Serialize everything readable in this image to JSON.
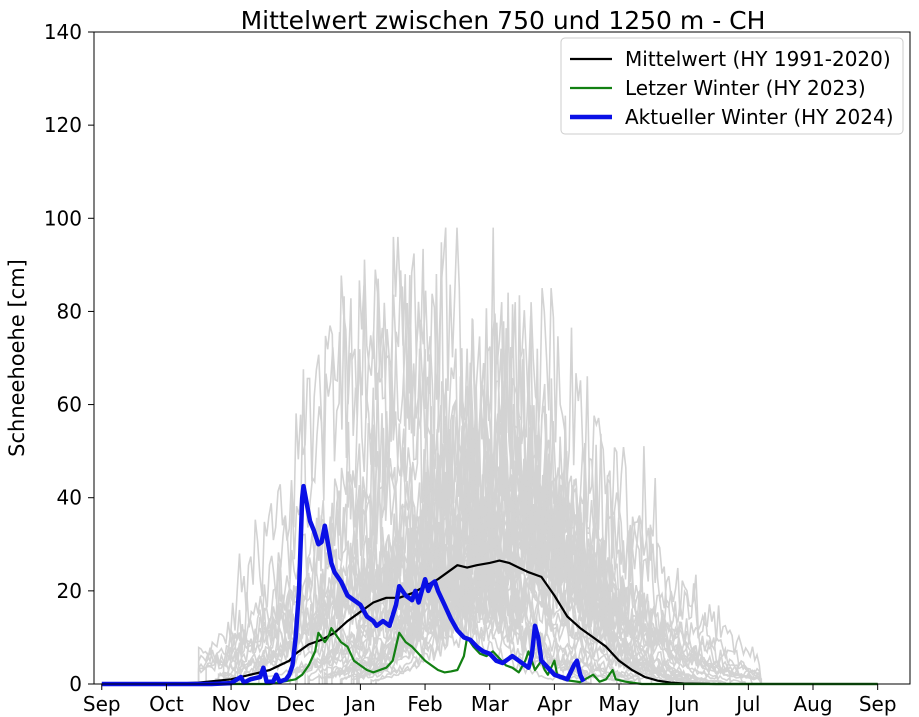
{
  "chart_data": {
    "type": "line",
    "title": "Mittelwert zwischen 750 und 1250 m  - CH",
    "ylabel": "Schneehoehe [cm]",
    "xlabel": "",
    "ylim": [
      0,
      140
    ],
    "xlim": [
      -0.12,
      12.5
    ],
    "yticks": [
      0,
      20,
      40,
      60,
      80,
      100,
      120,
      140
    ],
    "xtick_labels": [
      "Sep",
      "Oct",
      "Nov",
      "Dec",
      "Jan",
      "Feb",
      "Mar",
      "Apr",
      "May",
      "Jun",
      "Jul",
      "Aug",
      "Sep"
    ],
    "grid": false,
    "legend_position": "top-right",
    "legend": [
      {
        "label": "Mittelwert (HY 1991-2020)",
        "color": "#000000"
      },
      {
        "label": "Letzer Winter (HY 2023)",
        "color": "#128012"
      },
      {
        "label": "Aktueller Winter (HY 2024)",
        "color": "#0a10e6"
      }
    ],
    "series": [
      {
        "name": "Mittelwert (HY 1991-2020)",
        "color": "#000000",
        "points": [
          [
            0,
            0
          ],
          [
            1,
            0
          ],
          [
            1.5,
            0.3
          ],
          [
            2,
            1
          ],
          [
            2.3,
            2
          ],
          [
            2.6,
            3
          ],
          [
            2.9,
            5
          ],
          [
            3.0,
            6.5
          ],
          [
            3.2,
            8.5
          ],
          [
            3.4,
            9.5
          ],
          [
            3.6,
            11
          ],
          [
            3.8,
            13.5
          ],
          [
            4.0,
            15.5
          ],
          [
            4.2,
            17.5
          ],
          [
            4.4,
            18.5
          ],
          [
            4.6,
            18.5
          ],
          [
            4.8,
            19.5
          ],
          [
            5.0,
            21
          ],
          [
            5.2,
            22.5
          ],
          [
            5.35,
            24
          ],
          [
            5.5,
            25.5
          ],
          [
            5.65,
            25
          ],
          [
            5.8,
            25.5
          ],
          [
            6.0,
            26
          ],
          [
            6.15,
            26.5
          ],
          [
            6.3,
            26
          ],
          [
            6.45,
            25
          ],
          [
            6.6,
            24
          ],
          [
            6.8,
            23
          ],
          [
            6.9,
            21
          ],
          [
            7.0,
            19
          ],
          [
            7.2,
            14.5
          ],
          [
            7.4,
            12
          ],
          [
            7.6,
            10
          ],
          [
            7.8,
            8
          ],
          [
            8.0,
            5
          ],
          [
            8.2,
            3
          ],
          [
            8.4,
            1.5
          ],
          [
            8.6,
            0.7
          ],
          [
            8.8,
            0.3
          ],
          [
            9.0,
            0.1
          ],
          [
            9.5,
            0
          ],
          [
            12,
            0
          ]
        ]
      },
      {
        "name": "Letzer Winter (HY 2023)",
        "color": "#128012",
        "points": [
          [
            0,
            0
          ],
          [
            2.6,
            0
          ],
          [
            2.8,
            0.5
          ],
          [
            3.0,
            1
          ],
          [
            3.1,
            2
          ],
          [
            3.2,
            4
          ],
          [
            3.3,
            7
          ],
          [
            3.35,
            11
          ],
          [
            3.45,
            9
          ],
          [
            3.5,
            10
          ],
          [
            3.55,
            12
          ],
          [
            3.6,
            11
          ],
          [
            3.7,
            9
          ],
          [
            3.8,
            8
          ],
          [
            3.9,
            5
          ],
          [
            4.0,
            4
          ],
          [
            4.1,
            3
          ],
          [
            4.2,
            2.5
          ],
          [
            4.3,
            3
          ],
          [
            4.4,
            3.5
          ],
          [
            4.5,
            5
          ],
          [
            4.6,
            11
          ],
          [
            4.7,
            9
          ],
          [
            4.8,
            8
          ],
          [
            4.9,
            6.5
          ],
          [
            5.0,
            5
          ],
          [
            5.1,
            4
          ],
          [
            5.2,
            3
          ],
          [
            5.3,
            2.5
          ],
          [
            5.4,
            2.7
          ],
          [
            5.5,
            3
          ],
          [
            5.6,
            6
          ],
          [
            5.65,
            10
          ],
          [
            5.75,
            8
          ],
          [
            5.85,
            6.5
          ],
          [
            5.95,
            6
          ],
          [
            6.05,
            7
          ],
          [
            6.15,
            5.5
          ],
          [
            6.25,
            4
          ],
          [
            6.35,
            3.5
          ],
          [
            6.45,
            2.5
          ],
          [
            6.55,
            5
          ],
          [
            6.6,
            7
          ],
          [
            6.7,
            3
          ],
          [
            6.8,
            5
          ],
          [
            6.85,
            3
          ],
          [
            6.9,
            2
          ],
          [
            7.0,
            5
          ],
          [
            7.05,
            1.5
          ],
          [
            7.2,
            0.8
          ],
          [
            7.4,
            0.4
          ],
          [
            7.6,
            2
          ],
          [
            7.7,
            0.5
          ],
          [
            7.8,
            1
          ],
          [
            7.9,
            3
          ],
          [
            7.95,
            1
          ],
          [
            8.1,
            0.5
          ],
          [
            8.25,
            0.2
          ],
          [
            8.35,
            0
          ],
          [
            12,
            0
          ]
        ]
      },
      {
        "name": "Aktueller Winter (HY 2024)",
        "color": "#0a10e6",
        "points": [
          [
            0,
            0
          ],
          [
            1.7,
            0
          ],
          [
            2.0,
            0.2
          ],
          [
            2.15,
            1.5
          ],
          [
            2.2,
            0.3
          ],
          [
            2.3,
            1
          ],
          [
            2.45,
            1.5
          ],
          [
            2.5,
            3.5
          ],
          [
            2.55,
            0.5
          ],
          [
            2.65,
            0.5
          ],
          [
            2.7,
            2
          ],
          [
            2.75,
            0.5
          ],
          [
            2.85,
            1
          ],
          [
            2.9,
            2
          ],
          [
            2.95,
            4
          ],
          [
            3.0,
            10
          ],
          [
            3.05,
            20
          ],
          [
            3.1,
            40
          ],
          [
            3.12,
            42.5
          ],
          [
            3.18,
            38
          ],
          [
            3.22,
            35
          ],
          [
            3.28,
            33
          ],
          [
            3.35,
            30
          ],
          [
            3.4,
            30.5
          ],
          [
            3.45,
            34
          ],
          [
            3.5,
            30
          ],
          [
            3.55,
            26
          ],
          [
            3.6,
            24
          ],
          [
            3.65,
            23
          ],
          [
            3.7,
            22
          ],
          [
            3.8,
            19
          ],
          [
            3.9,
            18
          ],
          [
            4.0,
            17
          ],
          [
            4.1,
            14.5
          ],
          [
            4.2,
            13.5
          ],
          [
            4.25,
            12.5
          ],
          [
            4.35,
            13.5
          ],
          [
            4.45,
            12.5
          ],
          [
            4.55,
            17
          ],
          [
            4.6,
            21
          ],
          [
            4.7,
            19
          ],
          [
            4.8,
            18
          ],
          [
            4.85,
            20
          ],
          [
            4.9,
            17.5
          ],
          [
            4.95,
            20
          ],
          [
            5.0,
            22.5
          ],
          [
            5.05,
            20
          ],
          [
            5.1,
            21.5
          ],
          [
            5.15,
            22
          ],
          [
            5.2,
            20
          ],
          [
            5.3,
            17
          ],
          [
            5.4,
            14
          ],
          [
            5.5,
            11.5
          ],
          [
            5.6,
            10
          ],
          [
            5.7,
            9.5
          ],
          [
            5.8,
            8
          ],
          [
            5.9,
            7
          ],
          [
            6.0,
            6.5
          ],
          [
            6.1,
            5
          ],
          [
            6.2,
            4.5
          ],
          [
            6.3,
            5.5
          ],
          [
            6.35,
            6
          ],
          [
            6.45,
            5
          ],
          [
            6.55,
            4
          ],
          [
            6.6,
            3.5
          ],
          [
            6.65,
            6
          ],
          [
            6.7,
            12.5
          ],
          [
            6.75,
            10
          ],
          [
            6.8,
            5
          ],
          [
            6.9,
            3.5
          ],
          [
            7.0,
            2
          ],
          [
            7.1,
            1.5
          ],
          [
            7.2,
            1
          ],
          [
            7.3,
            4
          ],
          [
            7.35,
            5
          ],
          [
            7.4,
            2
          ],
          [
            7.45,
            0.5
          ]
        ]
      }
    ]
  }
}
